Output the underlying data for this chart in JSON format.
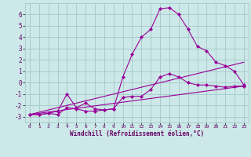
{
  "background_color": "#cce8e8",
  "grid_color": "#aacccc",
  "line_color": "#990099",
  "marker_color": "#990099",
  "xlabel": "Windchill (Refroidissement éolien,°C)",
  "xlabel_color": "#660066",
  "tick_color": "#660066",
  "xlim": [
    -0.5,
    23.5
  ],
  "ylim": [
    -3.5,
    7.0
  ],
  "yticks": [
    -3,
    -2,
    -1,
    0,
    1,
    2,
    3,
    4,
    5,
    6
  ],
  "xticks": [
    0,
    1,
    2,
    3,
    4,
    5,
    6,
    7,
    8,
    9,
    10,
    11,
    12,
    13,
    14,
    15,
    16,
    17,
    18,
    19,
    20,
    21,
    22,
    23
  ],
  "series": [
    {
      "x": [
        0,
        1,
        2,
        3,
        4,
        5,
        6,
        7,
        8,
        9,
        10,
        11,
        12,
        13,
        14,
        15,
        16,
        17,
        18,
        19,
        20,
        21,
        22,
        23
      ],
      "y": [
        -2.8,
        -2.8,
        -2.7,
        -2.8,
        -2.2,
        -2.3,
        -2.5,
        -2.5,
        -2.4,
        -2.3,
        -1.3,
        -1.2,
        -1.2,
        -0.6,
        0.5,
        0.8,
        0.5,
        0.0,
        -0.2,
        -0.2,
        -0.3,
        -0.4,
        -0.3,
        -0.3
      ],
      "no_marker": false
    },
    {
      "x": [
        0,
        1,
        2,
        3,
        4,
        5,
        6,
        7,
        8,
        9,
        10,
        11,
        12,
        13,
        14,
        15,
        16,
        17,
        18,
        19,
        20,
        21,
        22,
        23
      ],
      "y": [
        -2.8,
        -2.8,
        -2.7,
        -2.5,
        -1.0,
        -2.2,
        -1.8,
        -2.3,
        -2.4,
        -2.3,
        0.5,
        2.5,
        4.0,
        4.7,
        6.5,
        6.6,
        6.0,
        4.7,
        3.2,
        2.8,
        1.8,
        1.5,
        1.0,
        -0.2
      ],
      "no_marker": false
    },
    {
      "x": [
        0,
        23
      ],
      "y": [
        -2.8,
        -0.3
      ],
      "no_marker": true
    },
    {
      "x": [
        0,
        23
      ],
      "y": [
        -2.8,
        1.8
      ],
      "no_marker": true
    }
  ]
}
